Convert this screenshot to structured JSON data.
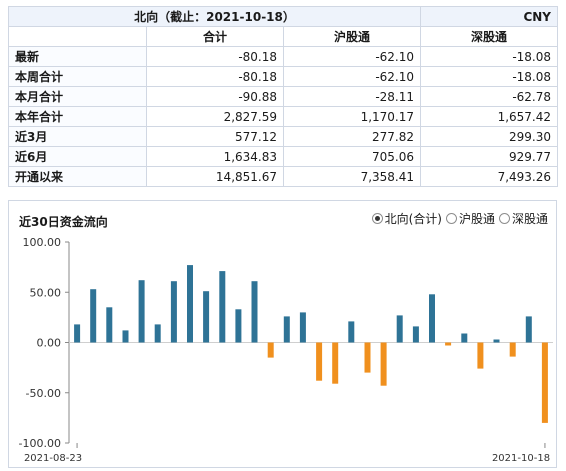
{
  "table": {
    "title": "北向（截止：2021-10-18）",
    "unit": "CNY",
    "columns": [
      "合计",
      "沪股通",
      "深股通"
    ],
    "rows": [
      {
        "label": "最新",
        "values": [
          "-80.18",
          "-62.10",
          "-18.08"
        ]
      },
      {
        "label": "本周合计",
        "values": [
          "-80.18",
          "-62.10",
          "-18.08"
        ]
      },
      {
        "label": "本月合计",
        "values": [
          "-90.88",
          "-28.11",
          "-62.78"
        ]
      },
      {
        "label": "本年合计",
        "values": [
          "2,827.59",
          "1,170.17",
          "1,657.42"
        ]
      },
      {
        "label": "近3月",
        "values": [
          "577.12",
          "277.82",
          "299.30"
        ]
      },
      {
        "label": "近6月",
        "values": [
          "1,634.83",
          "705.06",
          "929.77"
        ]
      },
      {
        "label": "开通以来",
        "values": [
          "14,851.67",
          "7,358.41",
          "7,493.26"
        ]
      }
    ]
  },
  "chart_section": {
    "title": "近30日资金流向",
    "options": [
      {
        "label": "北向(合计)",
        "checked": true
      },
      {
        "label": "沪股通",
        "checked": false
      },
      {
        "label": "深股通",
        "checked": false
      }
    ]
  },
  "colors": {
    "positive": "#2e7396",
    "negative": "#f0901e",
    "axis": "#888888",
    "header_bg": "#eef3fb",
    "border": "#d0d7e3"
  },
  "chart_data": {
    "type": "bar",
    "title": "",
    "xlabel": "",
    "ylabel": "",
    "ylim": [
      -100,
      100
    ],
    "yticks": [
      "100.00",
      "50.00",
      "0.00",
      "-50.00",
      "-100.00"
    ],
    "x_start_label": "2021-08-23",
    "x_end_label": "2021-10-18",
    "series": [
      {
        "values": [
          18,
          53,
          35,
          12,
          62,
          18,
          61,
          77,
          51,
          71,
          33,
          61,
          -15,
          26,
          30,
          -38,
          -41,
          21,
          -30,
          -43,
          27,
          16,
          48,
          -3,
          9,
          -26,
          3,
          -14,
          26,
          -80
        ]
      }
    ]
  }
}
